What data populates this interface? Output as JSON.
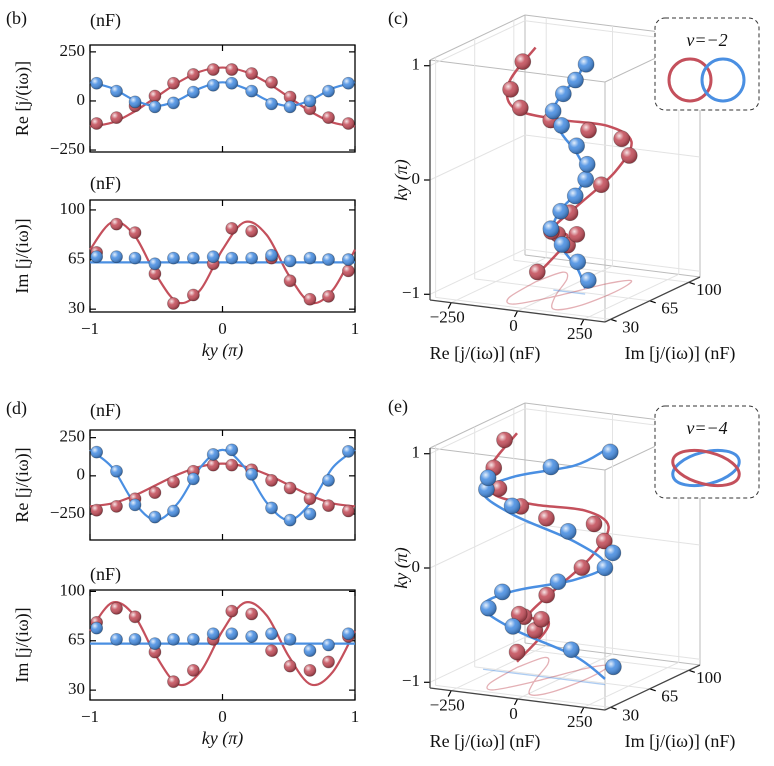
{
  "chart_data": [
    {
      "type": "line",
      "panel": "(b)",
      "unit": "(nF)",
      "ylabel": "Re [j/(iω)]",
      "xlim": [
        -1,
        1
      ],
      "ylim": [
        -260,
        285
      ],
      "yticks": [
        250,
        0,
        {
          "value": -250,
          "label": "−250"
        }
      ],
      "x": [
        -0.95,
        -0.8,
        -0.66,
        -0.51,
        -0.37,
        -0.22,
        -0.07,
        0.07,
        0.22,
        0.37,
        0.51,
        0.66,
        0.8,
        0.95
      ],
      "fit_x": [
        -1,
        -0.833,
        -0.667,
        -0.5,
        -0.333,
        -0.167,
        0,
        0.167,
        0.333,
        0.5,
        0.667,
        0.833,
        1
      ],
      "series": [
        {
          "color": "#c4505c",
          "values": [
            -115,
            -85,
            -25,
            25,
            90,
            135,
            160,
            160,
            140,
            95,
            20,
            -40,
            -85,
            -115
          ],
          "fit": [
            -130,
            -110,
            -55,
            20,
            95,
            150,
            170,
            150,
            95,
            20,
            -55,
            -110,
            -130
          ]
        },
        {
          "color": "#4a8fe2",
          "values": [
            90,
            50,
            -5,
            -30,
            -10,
            45,
            80,
            90,
            50,
            -15,
            -30,
            0,
            50,
            90
          ],
          "fit": [
            95,
            65,
            5,
            -25,
            5,
            65,
            95,
            65,
            5,
            -25,
            5,
            65,
            95
          ]
        }
      ]
    },
    {
      "type": "line",
      "unit": "(nF)",
      "ylabel": "Im [j/(iω)]",
      "xlabel": "ky (π)",
      "xlim": [
        -1,
        1
      ],
      "ylim": [
        28,
        107
      ],
      "yticks": [
        30,
        65,
        100
      ],
      "xticks": [
        {
          "value": -1,
          "label": "−1"
        },
        0,
        1
      ],
      "x": [
        -0.95,
        -0.8,
        -0.66,
        -0.51,
        -0.37,
        -0.22,
        -0.07,
        0.07,
        0.22,
        0.37,
        0.51,
        0.66,
        0.8,
        0.95
      ],
      "fit_x": [
        -1,
        -0.833,
        -0.667,
        -0.5,
        -0.333,
        -0.167,
        0,
        0.167,
        0.333,
        0.5,
        0.667,
        0.833,
        1
      ],
      "series": [
        {
          "color": "#c4505c",
          "values": [
            70,
            90,
            84,
            55,
            34,
            40,
            62,
            87,
            85,
            66,
            50,
            37,
            39,
            57
          ],
          "fit": [
            72,
            91.4,
            82.4,
            54,
            34.6,
            43.6,
            72,
            91.4,
            82.4,
            54,
            34.6,
            43.6,
            72
          ]
        },
        {
          "color": "#4a8fe2",
          "values": [
            67,
            67,
            66,
            62,
            66,
            66,
            67,
            66,
            66,
            68,
            64,
            66,
            65,
            65
          ],
          "fit": [
            63,
            63,
            63,
            63,
            63,
            63,
            63,
            63,
            63,
            63,
            63,
            63,
            63
          ]
        }
      ]
    },
    {
      "type": "scatter3d",
      "panel": "(c)",
      "xlabel": "Re [j/(iω)] (nF)",
      "ylabel": "Im [j/(iω)] (nF)",
      "zlabel": "ky (π)",
      "xlim": [
        -330,
        330
      ],
      "ylim": [
        25,
        110
      ],
      "zlim": [
        -1.05,
        1.05
      ],
      "xticks": [
        {
          "value": -250,
          "label": "−250"
        },
        0,
        250
      ],
      "yticks": [
        30,
        65,
        100
      ],
      "zticks": [
        {
          "value": -1,
          "label": "−1"
        },
        0,
        1
      ],
      "annotation": "ν=−2"
    },
    {
      "type": "line",
      "panel": "(d)",
      "unit": "(nF)",
      "ylabel": "Re [j/(iω)]",
      "xlim": [
        -1,
        1
      ],
      "ylim": [
        -420,
        300
      ],
      "yticks": [
        250,
        0,
        {
          "value": -250,
          "label": "−250"
        }
      ],
      "x": [
        -0.95,
        -0.8,
        -0.66,
        -0.51,
        -0.37,
        -0.22,
        -0.07,
        0.07,
        0.22,
        0.37,
        0.51,
        0.66,
        0.8,
        0.95
      ],
      "fit_x": [
        -1,
        -0.833,
        -0.667,
        -0.5,
        -0.333,
        -0.167,
        0,
        0.167,
        0.333,
        0.5,
        0.667,
        0.833,
        1
      ],
      "series": [
        {
          "color": "#c4505c",
          "values": [
            -225,
            -200,
            -150,
            -110,
            -40,
            30,
            70,
            70,
            40,
            -30,
            -80,
            -150,
            -195,
            -230
          ],
          "fit": [
            -200,
            -181,
            -130,
            -60,
            10,
            61,
            80,
            61,
            10,
            -60,
            -130,
            -181,
            -200
          ]
        },
        {
          "color": "#4a8fe2",
          "values": [
            155,
            30,
            -190,
            -270,
            -230,
            -20,
            140,
            170,
            10,
            -210,
            -290,
            -250,
            -30,
            160
          ],
          "fit": [
            170,
            55,
            -175,
            -290,
            -175,
            55,
            170,
            55,
            -175,
            -290,
            -175,
            55,
            170
          ]
        }
      ]
    },
    {
      "type": "line",
      "unit": "(nF)",
      "ylabel": "Im [j/(iω)]",
      "xlabel": "ky (π)",
      "xlim": [
        -1,
        1
      ],
      "ylim": [
        23,
        101
      ],
      "yticks": [
        30,
        65,
        100
      ],
      "xticks": [
        {
          "value": -1,
          "label": "−1"
        },
        0,
        1
      ],
      "x": [
        -0.95,
        -0.8,
        -0.66,
        -0.51,
        -0.37,
        -0.22,
        -0.07,
        0.07,
        0.22,
        0.37,
        0.51,
        0.66,
        0.8,
        0.95
      ],
      "fit_x": [
        -1,
        -0.833,
        -0.667,
        -0.5,
        -0.333,
        -0.167,
        0,
        0.167,
        0.333,
        0.5,
        0.667,
        0.833,
        1
      ],
      "series": [
        {
          "color": "#c4505c",
          "values": [
            78,
            88,
            82,
            57,
            36,
            44,
            66,
            86,
            84,
            58,
            47,
            44,
            50,
            68
          ],
          "fit": [
            72,
            92,
            83,
            54,
            34,
            43,
            72,
            92,
            83,
            54,
            34,
            43,
            72
          ]
        },
        {
          "color": "#4a8fe2",
          "values": [
            74,
            66,
            66,
            63,
            66,
            66,
            70,
            70,
            68,
            70,
            66,
            58,
            62,
            70
          ],
          "fit": [
            63,
            63,
            63,
            63,
            63,
            63,
            63,
            63,
            63,
            63,
            63,
            63,
            63
          ]
        }
      ]
    },
    {
      "type": "scatter3d",
      "panel": "(e)",
      "xlabel": "Re [j/(iω)] (nF)",
      "ylabel": "Im [j/(iω)] (nF)",
      "zlabel": "ky (π)",
      "xlim": [
        -330,
        330
      ],
      "ylim": [
        25,
        110
      ],
      "zlim": [
        -1.05,
        1.05
      ],
      "xticks": [
        {
          "value": -250,
          "label": "−250"
        },
        0,
        250
      ],
      "yticks": [
        30,
        65,
        100
      ],
      "zticks": [
        {
          "value": -1,
          "label": "−1"
        },
        0,
        1
      ],
      "annotation": "ν=−4"
    }
  ]
}
